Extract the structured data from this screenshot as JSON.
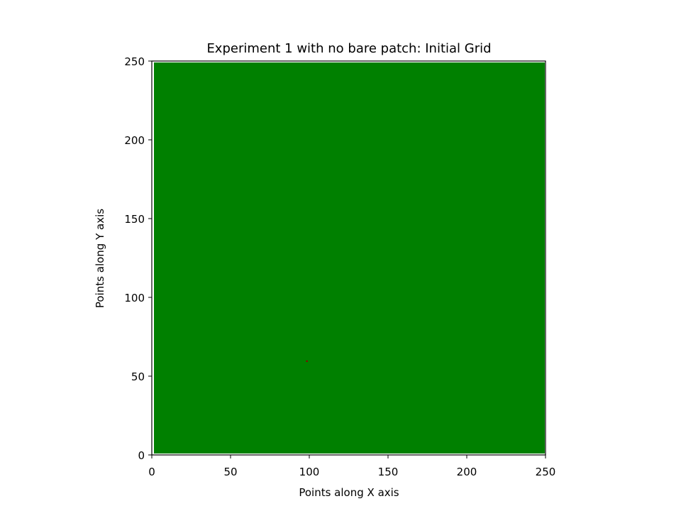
{
  "chart_data": {
    "type": "heatmap",
    "title": "Experiment 1 with no bare patch: Initial Grid",
    "xlabel": "Points along X axis",
    "ylabel": "Points along Y axis",
    "xlim": [
      0,
      250
    ],
    "ylim": [
      0,
      250
    ],
    "xticks": [
      0,
      50,
      100,
      150,
      200,
      250
    ],
    "yticks": [
      0,
      50,
      100,
      150,
      200,
      250
    ],
    "grid": false,
    "fill_color": "#008000",
    "background_color": "#ffffff",
    "cells": [
      {
        "x": 98,
        "y": 59,
        "color": "#8b0000"
      }
    ]
  }
}
